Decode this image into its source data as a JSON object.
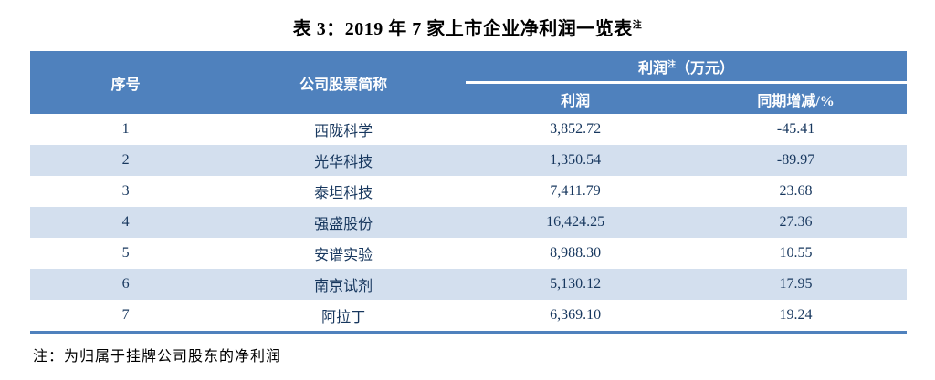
{
  "title": {
    "text": "表 3：2019 年 7 家上市企业净利润一览表",
    "superscript": "注"
  },
  "table": {
    "headers": {
      "seq": "序号",
      "company": "公司股票简称",
      "profit_group_main": "利润",
      "profit_group_sup": "注",
      "profit_group_unit": "（万元）",
      "sub_profit": "利润",
      "sub_yoy": "同期增减/%"
    },
    "rows": [
      {
        "seq": "1",
        "company": "西陇科学",
        "profit": "3,852.72",
        "yoy": "-45.41"
      },
      {
        "seq": "2",
        "company": "光华科技",
        "profit": "1,350.54",
        "yoy": "-89.97"
      },
      {
        "seq": "3",
        "company": "泰坦科技",
        "profit": "7,411.79",
        "yoy": "23.68"
      },
      {
        "seq": "4",
        "company": "强盛股份",
        "profit": "16,424.25",
        "yoy": "27.36"
      },
      {
        "seq": "5",
        "company": "安谱实验",
        "profit": "8,988.30",
        "yoy": "10.55"
      },
      {
        "seq": "6",
        "company": "南京试剂",
        "profit": "5,130.12",
        "yoy": "17.95"
      },
      {
        "seq": "7",
        "company": "阿拉丁",
        "profit": "6,369.10",
        "yoy": "19.24"
      }
    ],
    "colors": {
      "header_bg": "#4F81BD",
      "alt_row_bg": "#D3DFEE",
      "body_text": "#17375E",
      "header_text": "#FFFFFF",
      "bottom_border": "#4F81BD"
    }
  },
  "footnote": "注：为归属于挂牌公司股东的净利润"
}
